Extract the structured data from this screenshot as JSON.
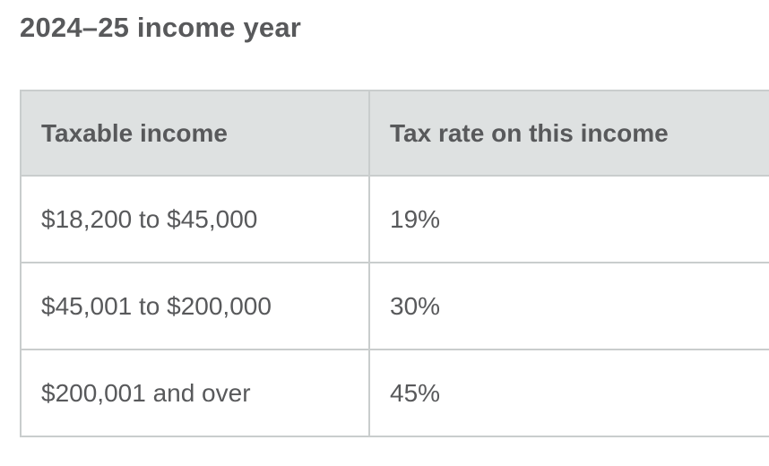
{
  "page": {
    "title": "2024–25 income year"
  },
  "table": {
    "columns": [
      {
        "label": "Taxable income"
      },
      {
        "label": "Tax rate on this income"
      }
    ],
    "rows": [
      {
        "taxable_income": "$18,200 to $45,000",
        "tax_rate": "19%"
      },
      {
        "taxable_income": "$45,001 to $200,000",
        "tax_rate": "30%"
      },
      {
        "taxable_income": "$200,001 and over",
        "tax_rate": "45%"
      }
    ]
  },
  "colors": {
    "header_bg": "#dee1e1",
    "border": "#c9cdcd",
    "text": "#58595b",
    "page_bg": "#ffffff"
  }
}
